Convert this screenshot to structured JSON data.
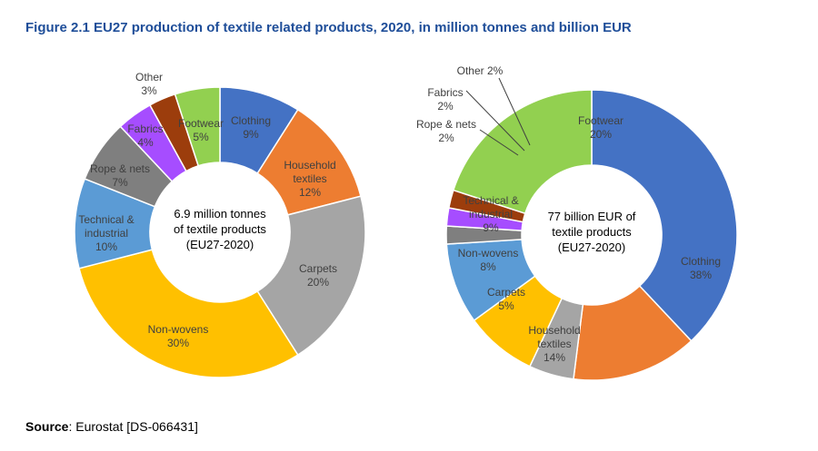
{
  "figure": {
    "title": "Figure 2.1 EU27 production of textile related products, 2020, in million tonnes and billion EUR",
    "source_label": "Source",
    "source_text": ": Eurostat [DS-066431]"
  },
  "colors": {
    "title": "#1F4E99",
    "Clothing": "#4472C4",
    "Household textiles": "#ED7D31",
    "Carpets": "#A5A5A5",
    "Non-wovens": "#FFC000",
    "Technical & industrial": "#5B9BD5",
    "Rope & nets": "#7F7F7F",
    "Fabrics": "#A64DFF",
    "Other": "#9C3D0C",
    "Footwear": "#92D050"
  },
  "chart_data": [
    {
      "type": "pie",
      "variant": "donut",
      "center_text": [
        "6.9 million tonnes",
        "of textile products",
        "(EU27-2020)"
      ],
      "unit": "%",
      "slices": [
        {
          "label": "Clothing",
          "label_lines": [
            "Clothing"
          ],
          "value": 9
        },
        {
          "label": "Household textiles",
          "label_lines": [
            "Household",
            "textiles"
          ],
          "value": 12
        },
        {
          "label": "Carpets",
          "label_lines": [
            "Carpets"
          ],
          "value": 20
        },
        {
          "label": "Non-wovens",
          "label_lines": [
            "Non-wovens"
          ],
          "value": 30
        },
        {
          "label": "Technical & industrial",
          "label_lines": [
            "Technical &",
            "industrial"
          ],
          "value": 10
        },
        {
          "label": "Rope & nets",
          "label_lines": [
            "Rope & nets"
          ],
          "value": 7
        },
        {
          "label": "Fabrics",
          "label_lines": [
            "Fabrics"
          ],
          "value": 4
        },
        {
          "label": "Other",
          "label_lines": [
            "Other"
          ],
          "value": 3
        },
        {
          "label": "Footwear",
          "label_lines": [
            "Footwear"
          ],
          "value": 5
        }
      ]
    },
    {
      "type": "pie",
      "variant": "donut",
      "center_text": [
        "77 billion EUR of",
        "textile products",
        "(EU27-2020)"
      ],
      "unit": "%",
      "slices": [
        {
          "label": "Clothing",
          "label_lines": [
            "Clothing"
          ],
          "value": 38
        },
        {
          "label": "Household textiles",
          "label_lines": [
            "Household",
            "textiles"
          ],
          "value": 14
        },
        {
          "label": "Carpets",
          "label_lines": [
            "Carpets"
          ],
          "value": 5
        },
        {
          "label": "Non-wovens",
          "label_lines": [
            "Non-wovens"
          ],
          "value": 8
        },
        {
          "label": "Technical & industrial",
          "label_lines": [
            "Technical &",
            "industrial"
          ],
          "value": 9
        },
        {
          "label": "Rope & nets",
          "label_lines": [
            "Rope & nets"
          ],
          "value": 2
        },
        {
          "label": "Fabrics",
          "label_lines": [
            "Fabrics"
          ],
          "value": 2
        },
        {
          "label": "Other",
          "label_lines": [
            "Other"
          ],
          "value": 2
        },
        {
          "label": "Footwear",
          "label_lines": [
            "Footwear"
          ],
          "value": 20
        }
      ]
    }
  ]
}
